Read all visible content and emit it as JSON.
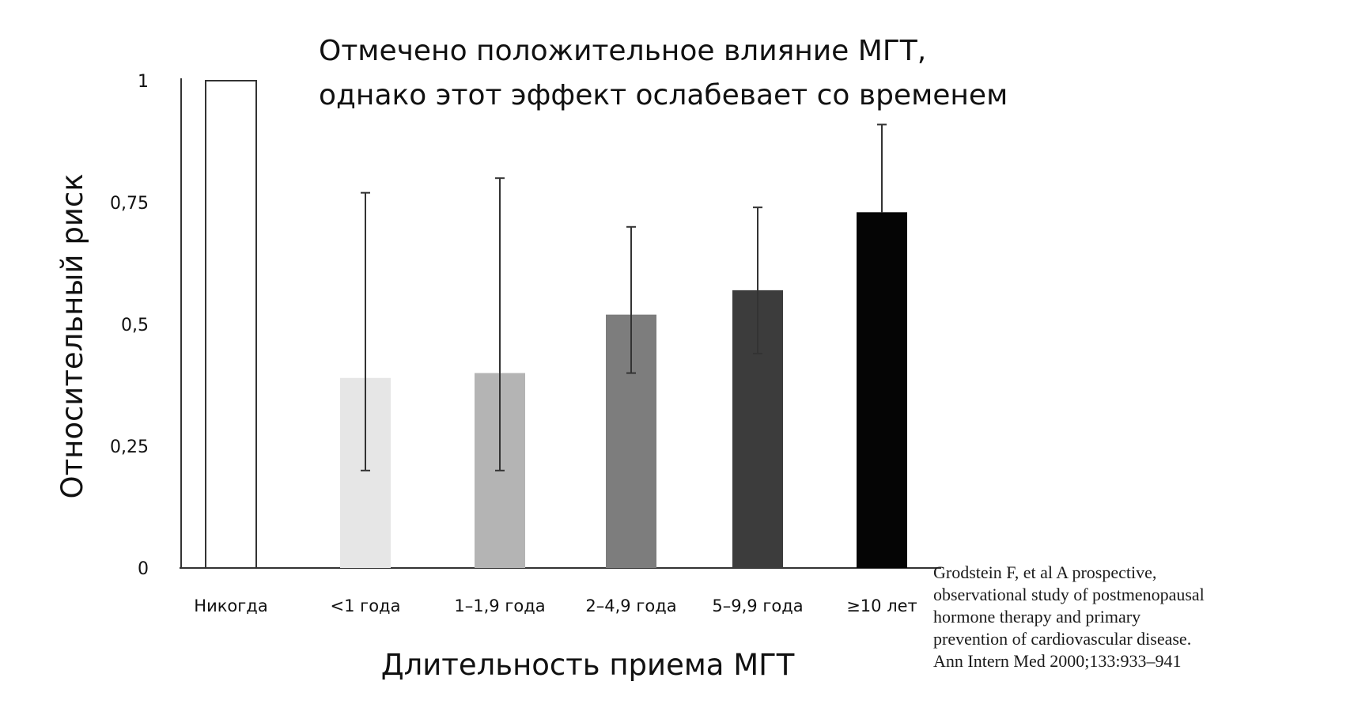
{
  "chart_data": {
    "type": "bar",
    "title": [
      "Отмечено положительное влияние МГТ,",
      "однако этот эффект ослабевает со временем"
    ],
    "xlabel": "Длительность приема МГТ",
    "ylabel": "Относительный риск",
    "categories": [
      "Никогда",
      "<1 года",
      "1–1,9 года",
      "2–4,9 года",
      "5–9,9 года",
      "≥10 лет"
    ],
    "values": [
      1.0,
      0.39,
      0.4,
      0.52,
      0.57,
      0.73
    ],
    "error_low": [
      null,
      0.2,
      0.2,
      0.4,
      0.44,
      null
    ],
    "error_high": [
      null,
      0.77,
      0.8,
      0.7,
      0.74,
      0.91
    ],
    "bar_colors": [
      "#ffffff",
      "#e6e6e6",
      "#b4b4b4",
      "#7d7d7d",
      "#3c3c3c",
      "#050505"
    ],
    "yticks": [
      {
        "value": 0,
        "label": "0"
      },
      {
        "value": 0.25,
        "label": "0,25"
      },
      {
        "value": 0.5,
        "label": "0,5"
      },
      {
        "value": 0.75,
        "label": "0,75"
      },
      {
        "value": 1,
        "label": "1"
      }
    ],
    "ylim": [
      0,
      1
    ],
    "grid": false
  },
  "citation": [
    "Grodstein F, et al A prospective,",
    "observational study of postmenopausal",
    "hormone therapy and primary",
    "prevention of cardiovascular disease.",
    "Ann Intern Med 2000;133:933–941"
  ]
}
